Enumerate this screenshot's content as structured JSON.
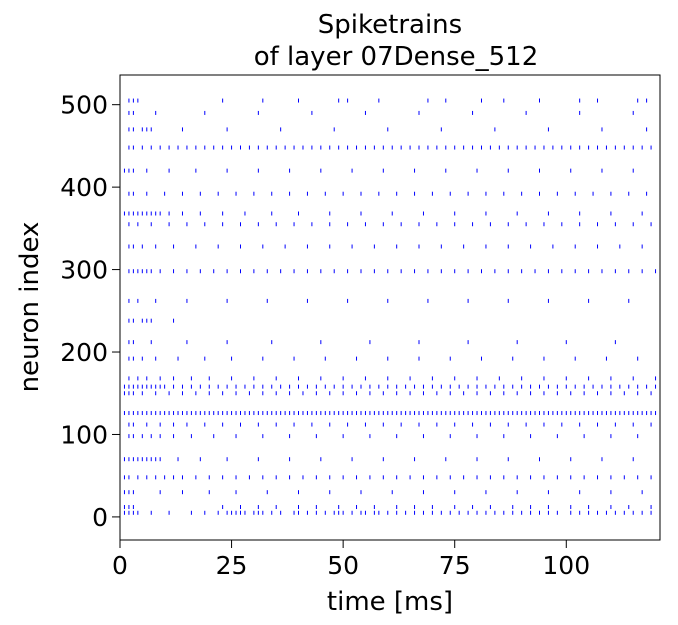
{
  "chart_data": {
    "type": "scatter",
    "title_line1": "Spiketrains",
    "title_line2": "of layer 07Dense_512",
    "xlabel": "time [ms]",
    "ylabel": "neuron index",
    "xlim": [
      0,
      121
    ],
    "ylim": [
      -28,
      536
    ],
    "xticks": [
      0,
      25,
      50,
      75,
      100
    ],
    "yticks": [
      0,
      100,
      200,
      300,
      400,
      500
    ],
    "marker": "|",
    "color": "#0000ff",
    "grid": false,
    "legend": "none",
    "series": [
      {
        "rows": [
          {
            "neuron": 5,
            "times": [
              1,
              2,
              3,
              4,
              7,
              11,
              16,
              19,
              22,
              24,
              25,
              26,
              27,
              28,
              30,
              31,
              32,
              34,
              36,
              39,
              40,
              42,
              44,
              46,
              48,
              49,
              50,
              52,
              54,
              55,
              57,
              58,
              60,
              62,
              64,
              66,
              68,
              70,
              72,
              74,
              76,
              78,
              80,
              82,
              84,
              86,
              88,
              90,
              92,
              94,
              96,
              98,
              101,
              103,
              105,
              107,
              109,
              111,
              113,
              115,
              117,
              119
            ]
          },
          {
            "neuron": 12,
            "times": [
              1,
              2,
              3,
              23,
              27,
              31,
              35,
              40,
              44,
              49,
              53,
              57,
              62,
              66,
              70,
              75,
              79,
              83,
              88,
              92,
              96,
              101,
              105,
              110,
              114,
              119
            ]
          },
          {
            "neuron": 30,
            "times": [
              1,
              2,
              3,
              9,
              14,
              20,
              26,
              33,
              40,
              47,
              54,
              61,
              68,
              75,
              82,
              89,
              96,
              103,
              110,
              117
            ]
          },
          {
            "neuron": 48,
            "times": [
              1,
              2,
              4,
              6,
              8,
              10,
              12,
              14,
              17,
              20,
              23,
              26,
              29,
              32,
              35,
              38,
              41,
              44,
              47,
              50,
              53,
              56,
              59,
              62,
              65,
              68,
              71,
              74,
              77,
              80,
              83,
              86,
              89,
              92,
              95,
              98,
              101,
              104,
              107,
              110,
              113,
              116,
              119
            ]
          },
          {
            "neuron": 70,
            "times": [
              1,
              2,
              3,
              4,
              5,
              6,
              7,
              8,
              9,
              13,
              18,
              24,
              31,
              38,
              45,
              52,
              59,
              66,
              73,
              80,
              87,
              94,
              101,
              108,
              115
            ]
          },
          {
            "neuron": 98,
            "times": [
              2,
              3,
              5,
              7,
              9,
              12,
              16,
              21,
              26,
              32,
              38,
              44,
              50,
              56,
              62,
              68,
              74,
              80,
              86,
              92,
              98,
              104,
              110,
              116
            ]
          },
          {
            "neuron": 112,
            "times": [
              2,
              3,
              6,
              9,
              12,
              15,
              19,
              23,
              27,
              31,
              35,
              39,
              43,
              47,
              51,
              55,
              59,
              63,
              67,
              71,
              75,
              79,
              83,
              87,
              91,
              95,
              99,
              103,
              107,
              111,
              115,
              119
            ]
          },
          {
            "neuron": 126,
            "times": [
              1,
              2,
              3,
              4,
              5,
              6,
              7,
              8,
              9,
              10,
              11,
              12,
              13,
              14,
              15,
              16,
              17,
              18,
              19,
              20,
              21,
              22,
              23,
              24,
              25,
              26,
              27,
              28,
              29,
              30,
              31,
              32,
              33,
              34,
              35,
              36,
              37,
              38,
              39,
              40,
              41,
              42,
              43,
              44,
              45,
              46,
              47,
              48,
              49,
              50,
              51,
              52,
              53,
              54,
              55,
              56,
              57,
              58,
              59,
              60,
              61,
              62,
              63,
              64,
              65,
              66,
              67,
              68,
              69,
              70,
              71,
              72,
              73,
              74,
              75,
              76,
              77,
              78,
              79,
              80,
              81,
              82,
              83,
              84,
              85,
              86,
              87,
              88,
              89,
              90,
              91,
              92,
              93,
              94,
              95,
              96,
              97,
              98,
              99,
              100,
              101,
              102,
              103,
              104,
              105,
              106,
              107,
              108,
              109,
              110,
              111,
              112,
              113,
              114,
              115,
              116,
              117,
              118,
              119,
              120
            ]
          },
          {
            "neuron": 150,
            "times": [
              1,
              2,
              3,
              5,
              8,
              11,
              14,
              17,
              20,
              23,
              26,
              29,
              32,
              35,
              38,
              41,
              44,
              47,
              50,
              53,
              56,
              59,
              62,
              65,
              68,
              71,
              74,
              77,
              80,
              83,
              86,
              89,
              92,
              95,
              98,
              101,
              104,
              107,
              110,
              113,
              116,
              119
            ]
          },
          {
            "neuron": 158,
            "times": [
              1,
              2,
              3,
              4,
              5,
              6,
              7,
              8,
              9,
              10,
              12,
              14,
              16,
              18,
              20,
              22,
              24,
              26,
              28,
              30,
              32,
              34,
              36,
              38,
              40,
              42,
              44,
              46,
              48,
              50,
              52,
              54,
              56,
              58,
              60,
              62,
              64,
              66,
              68,
              70,
              72,
              74,
              76,
              78,
              80,
              82,
              84,
              86,
              88,
              90,
              92,
              94,
              96,
              98,
              100,
              102,
              104,
              106,
              108,
              110,
              112,
              114,
              116,
              118,
              120
            ]
          },
          {
            "neuron": 168,
            "times": [
              2,
              4,
              6,
              9,
              12,
              16,
              20,
              25,
              30,
              35,
              40,
              45,
              50,
              55,
              60,
              65,
              70,
              75,
              80,
              85,
              90,
              95,
              100,
              105,
              110,
              115,
              120
            ]
          },
          {
            "neuron": 192,
            "times": [
              2,
              3,
              5,
              8,
              13,
              19,
              25,
              32,
              39,
              46,
              53,
              60,
              67,
              74,
              81,
              88,
              95,
              102,
              109,
              116
            ]
          },
          {
            "neuron": 212,
            "times": [
              2,
              3,
              7,
              15,
              24,
              34,
              45,
              56,
              67,
              78,
              89,
              100,
              111
            ]
          },
          {
            "neuron": 238,
            "times": [
              2,
              3,
              5,
              6,
              7,
              12
            ]
          },
          {
            "neuron": 262,
            "times": [
              2,
              4,
              8,
              15,
              24,
              33,
              42,
              51,
              60,
              69,
              78,
              87,
              96,
              105,
              114
            ]
          },
          {
            "neuron": 298,
            "times": [
              2,
              3,
              4,
              5,
              6,
              7,
              9,
              12,
              15,
              18,
              21,
              24,
              27,
              30,
              33,
              36,
              39,
              42,
              45,
              48,
              51,
              54,
              57,
              60,
              63,
              66,
              69,
              72,
              75,
              78,
              81,
              84,
              87,
              90,
              93,
              96,
              99,
              102,
              105,
              108,
              111,
              114,
              117,
              120
            ]
          },
          {
            "neuron": 328,
            "times": [
              2,
              3,
              5,
              8,
              12,
              17,
              22,
              27,
              32,
              37,
              42,
              47,
              52,
              57,
              62,
              67,
              72,
              77,
              82,
              87,
              92,
              97,
              102,
              107,
              112,
              117
            ]
          },
          {
            "neuron": 355,
            "times": [
              2,
              4,
              7,
              11,
              15,
              19,
              23,
              27,
              31,
              35,
              39,
              43,
              47,
              51,
              55,
              59,
              63,
              67,
              71,
              75,
              79,
              83,
              87,
              91,
              95,
              99,
              103,
              107,
              111,
              115,
              119
            ]
          },
          {
            "neuron": 368,
            "times": [
              1,
              2,
              3,
              4,
              5,
              6,
              7,
              8,
              9,
              11,
              14,
              18,
              23,
              28,
              34,
              40,
              47,
              54,
              61,
              68,
              75,
              82,
              89,
              96,
              103,
              110,
              117
            ]
          },
          {
            "neuron": 392,
            "times": [
              2,
              3,
              6,
              10,
              14,
              18,
              22,
              26,
              30,
              34,
              38,
              42,
              46,
              50,
              54,
              58,
              62,
              66,
              70,
              74,
              78,
              82,
              86,
              90,
              94,
              98,
              102,
              106,
              110,
              114,
              118
            ]
          },
          {
            "neuron": 420,
            "times": [
              1,
              2,
              3,
              6,
              11,
              17,
              24,
              31,
              38,
              45,
              52,
              59,
              66,
              73,
              80,
              87,
              94,
              101,
              108,
              115
            ]
          },
          {
            "neuron": 448,
            "times": [
              2,
              3,
              5,
              7,
              9,
              11,
              13,
              15,
              17,
              19,
              21,
              23,
              25,
              27,
              29,
              31,
              33,
              35,
              37,
              39,
              41,
              43,
              45,
              47,
              49,
              51,
              53,
              55,
              57,
              59,
              61,
              63,
              65,
              67,
              69,
              71,
              73,
              75,
              77,
              79,
              81,
              83,
              85,
              87,
              89,
              91,
              93,
              95,
              97,
              99,
              101,
              103,
              105,
              107,
              109,
              111,
              113,
              115,
              117,
              119
            ]
          },
          {
            "neuron": 470,
            "times": [
              2,
              3,
              5,
              6,
              7,
              14,
              24,
              36,
              48,
              60,
              72,
              84,
              96,
              108,
              118
            ]
          },
          {
            "neuron": 490,
            "times": [
              2,
              3,
              8,
              19,
              31,
              43,
              55,
              67,
              79,
              91,
              103,
              115
            ]
          },
          {
            "neuron": 505,
            "times": [
              2,
              3,
              4,
              23,
              32,
              40,
              49,
              51,
              58,
              69,
              73,
              81,
              86,
              94,
              103,
              107,
              116,
              118
            ]
          }
        ]
      }
    ]
  }
}
